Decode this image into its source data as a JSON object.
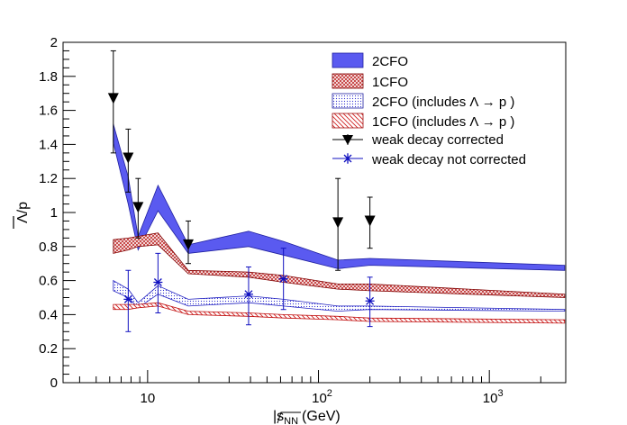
{
  "chart_data": {
    "type": "band",
    "xscale": "log",
    "xlim": [
      3.2,
      2800
    ],
    "ylim": [
      0,
      2
    ],
    "xlabel": {
      "prefix": "|",
      "sym": "s",
      "sub": "NN",
      "unit": "(GeV)"
    },
    "ylabel": "Λ/p",
    "yticks": [
      "0",
      "0.2",
      "0.4",
      "0.6",
      "0.8",
      "1",
      "1.2",
      "1.4",
      "1.6",
      "1.8",
      "2"
    ],
    "xticks": [
      {
        "base": "10",
        "exp": ""
      },
      {
        "base": "10",
        "exp": "2"
      },
      {
        "base": "10",
        "exp": "3"
      }
    ],
    "legend": [
      {
        "label": "2CFO",
        "style": "band-blue"
      },
      {
        "label": "1CFO",
        "style": "band-red"
      },
      {
        "label": "2CFO (includes Λ → p )",
        "style": "hatch-blue"
      },
      {
        "label": "1CFO (includes Λ → p )",
        "style": "hatch-red"
      },
      {
        "label": "weak decay corrected",
        "style": "marker-triangle"
      },
      {
        "label": "weak decay not corrected",
        "style": "marker-star"
      }
    ],
    "bands": [
      {
        "name": "2CFO",
        "color": "#5a5af0",
        "x": [
          6.3,
          7.7,
          8.8,
          11.5,
          17.3,
          39,
          62.4,
          130,
          200,
          2760
        ],
        "lo": [
          1.41,
          1.05,
          0.78,
          1.01,
          0.76,
          0.8,
          0.75,
          0.67,
          0.69,
          0.66
        ],
        "hi": [
          1.52,
          1.21,
          0.86,
          1.16,
          0.81,
          0.89,
          0.83,
          0.72,
          0.73,
          0.69
        ]
      },
      {
        "name": "1CFO",
        "color": "#c03030",
        "x": [
          6.3,
          7.7,
          8.8,
          11.5,
          17.3,
          39,
          62.4,
          130,
          200,
          2760
        ],
        "lo": [
          0.76,
          0.78,
          0.8,
          0.81,
          0.64,
          0.62,
          0.59,
          0.55,
          0.54,
          0.5
        ],
        "hi": [
          0.84,
          0.85,
          0.86,
          0.88,
          0.66,
          0.65,
          0.63,
          0.58,
          0.58,
          0.52
        ]
      },
      {
        "name": "2CFO (includes Λ → p )",
        "color": "#2a2ad0",
        "x": [
          6.3,
          7.7,
          8.8,
          11.5,
          17.3,
          39,
          62.4,
          130,
          200,
          2760
        ],
        "lo": [
          0.54,
          0.5,
          0.44,
          0.52,
          0.45,
          0.47,
          0.45,
          0.42,
          0.43,
          0.42
        ],
        "hi": [
          0.6,
          0.55,
          0.47,
          0.57,
          0.49,
          0.51,
          0.49,
          0.45,
          0.45,
          0.43
        ]
      },
      {
        "name": "1CFO (includes Λ → p )",
        "color": "#d02020",
        "x": [
          6.3,
          7.7,
          8.8,
          11.5,
          17.3,
          39,
          62.4,
          130,
          200,
          2760
        ],
        "lo": [
          0.43,
          0.43,
          0.44,
          0.45,
          0.4,
          0.39,
          0.38,
          0.37,
          0.36,
          0.35
        ],
        "hi": [
          0.46,
          0.46,
          0.46,
          0.47,
          0.42,
          0.41,
          0.4,
          0.39,
          0.38,
          0.37
        ]
      }
    ],
    "series": [
      {
        "name": "weak decay corrected",
        "marker": "triangle",
        "points": [
          {
            "x": 6.3,
            "y": 1.67,
            "lo": 1.35,
            "hi": 1.95
          },
          {
            "x": 7.7,
            "y": 1.32,
            "lo": 1.12,
            "hi": 1.49
          },
          {
            "x": 8.8,
            "y": 1.03,
            "lo": 0.85,
            "hi": 1.2
          },
          {
            "x": 17.3,
            "y": 0.81,
            "lo": 0.7,
            "hi": 0.95
          },
          {
            "x": 130,
            "y": 0.94,
            "lo": 0.66,
            "hi": 1.2
          },
          {
            "x": 200,
            "y": 0.95,
            "lo": 0.79,
            "hi": 1.09
          }
        ]
      },
      {
        "name": "weak decay not corrected",
        "marker": "star",
        "points": [
          {
            "x": 7.7,
            "y": 0.49,
            "lo": 0.3,
            "hi": 0.66
          },
          {
            "x": 11.5,
            "y": 0.59,
            "lo": 0.41,
            "hi": 0.76
          },
          {
            "x": 39,
            "y": 0.52,
            "lo": 0.34,
            "hi": 0.68
          },
          {
            "x": 62.4,
            "y": 0.61,
            "lo": 0.43,
            "hi": 0.79
          },
          {
            "x": 200,
            "y": 0.48,
            "lo": 0.33,
            "hi": 0.62
          }
        ]
      }
    ]
  }
}
